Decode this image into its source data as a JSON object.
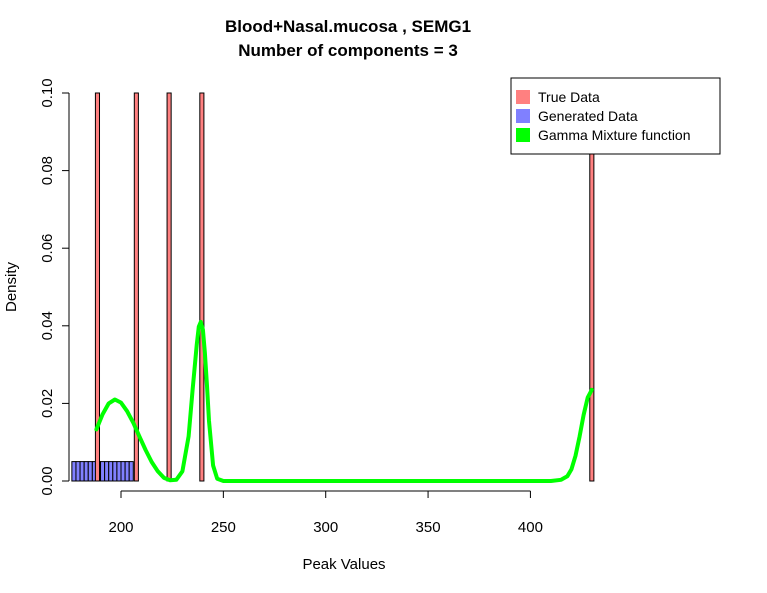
{
  "chart_data": {
    "type": "histogram",
    "title": "Blood+Nasal.mucosa , SEMG1",
    "subtitle": "Number of components =  3",
    "xlabel": "Peak Values",
    "ylabel": "Density",
    "xlim": [
      176,
      432
    ],
    "ylim": [
      0,
      0.1
    ],
    "x_ticks": [
      "200",
      "250",
      "300",
      "350",
      "400"
    ],
    "y_ticks": [
      "0.00",
      "0.02",
      "0.04",
      "0.06",
      "0.08",
      "0.10"
    ],
    "true_data": {
      "name": "True Data",
      "color": "#FF8080",
      "bars": [
        {
          "x0": 187.5,
          "x1": 189.5,
          "density": 0.1
        },
        {
          "x0": 206.5,
          "x1": 208.5,
          "density": 0.1
        },
        {
          "x0": 222.5,
          "x1": 224.5,
          "density": 0.1
        },
        {
          "x0": 238.5,
          "x1": 240.5,
          "density": 0.1
        },
        {
          "x0": 429.0,
          "x1": 431.0,
          "density": 0.1
        }
      ]
    },
    "generated_data": {
      "name": "Generated Data",
      "color": "#8080FF",
      "bars": [
        {
          "x0": 176,
          "x1": 178,
          "density": 0.005
        },
        {
          "x0": 178,
          "x1": 180,
          "density": 0.005
        },
        {
          "x0": 180,
          "x1": 182,
          "density": 0.005
        },
        {
          "x0": 182,
          "x1": 184,
          "density": 0.005
        },
        {
          "x0": 184,
          "x1": 186,
          "density": 0.005
        },
        {
          "x0": 186,
          "x1": 188,
          "density": 0.005
        },
        {
          "x0": 188,
          "x1": 190,
          "density": 0.005
        },
        {
          "x0": 190,
          "x1": 192,
          "density": 0.005
        },
        {
          "x0": 192,
          "x1": 194,
          "density": 0.005
        },
        {
          "x0": 194,
          "x1": 196,
          "density": 0.005
        },
        {
          "x0": 196,
          "x1": 198,
          "density": 0.005
        },
        {
          "x0": 198,
          "x1": 200,
          "density": 0.005
        },
        {
          "x0": 200,
          "x1": 202,
          "density": 0.005
        },
        {
          "x0": 202,
          "x1": 204,
          "density": 0.005
        },
        {
          "x0": 204,
          "x1": 206,
          "density": 0.005
        }
      ]
    },
    "mixture": {
      "name": "Gamma Mixture function",
      "color": "#00FF00",
      "x": [
        188,
        191,
        194,
        197,
        200,
        203,
        206,
        209,
        212,
        215,
        218,
        221,
        224,
        227,
        230,
        233,
        235,
        237,
        238,
        239,
        240,
        241,
        242,
        243,
        245,
        247,
        250,
        260,
        300,
        350,
        400,
        410,
        415,
        418,
        420,
        422,
        424,
        426,
        428,
        430
      ],
      "y": [
        0.0133,
        0.0172,
        0.02,
        0.021,
        0.0202,
        0.018,
        0.015,
        0.0115,
        0.008,
        0.0049,
        0.0025,
        0.0008,
        0.0002,
        0.0003,
        0.0025,
        0.0115,
        0.0235,
        0.035,
        0.0398,
        0.041,
        0.039,
        0.033,
        0.0245,
        0.0155,
        0.004,
        0.0006,
        0.0,
        0.0,
        0.0,
        0.0,
        0.0,
        0.0,
        0.0003,
        0.0012,
        0.003,
        0.0065,
        0.0115,
        0.017,
        0.0215,
        0.0235
      ]
    },
    "legend": {
      "position": "top-right",
      "entries": [
        {
          "label": "True Data",
          "color": "#FF8080"
        },
        {
          "label": "Generated Data",
          "color": "#8080FF"
        },
        {
          "label": "Gamma Mixture function",
          "color": "#00FF00"
        }
      ]
    }
  }
}
